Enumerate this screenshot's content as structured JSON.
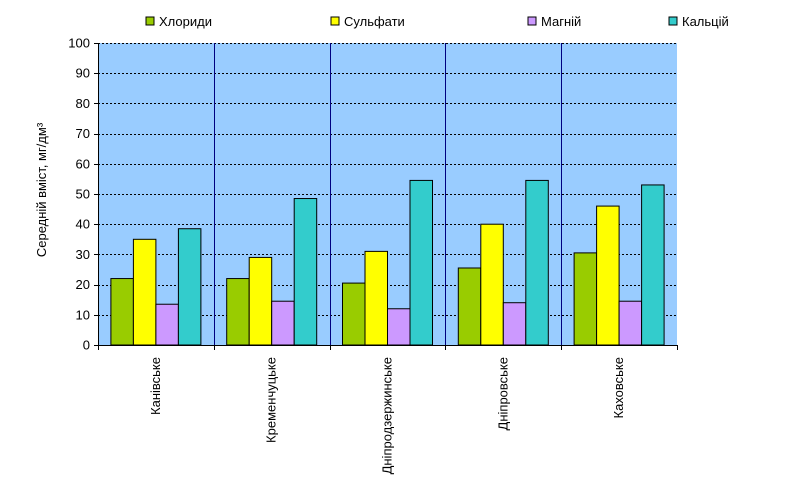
{
  "chart_data": {
    "type": "bar",
    "categories": [
      "Канівське",
      "Кременчуцьке",
      "Дніпродзержинське",
      "Дніпровське",
      "Каховське"
    ],
    "series": [
      {
        "name": "Хлориди",
        "color": "#99cc00",
        "values": [
          22,
          22,
          20.5,
          25.5,
          30.5
        ]
      },
      {
        "name": "Сульфати",
        "color": "#ffff00",
        "values": [
          35,
          29,
          31,
          40,
          46
        ]
      },
      {
        "name": "Магній",
        "color": "#cc99ff",
        "values": [
          13.5,
          14.5,
          12,
          14,
          14.5
        ]
      },
      {
        "name": "Кальцій",
        "color": "#33cccc",
        "values": [
          38.5,
          48.5,
          54.5,
          54.5,
          53
        ]
      }
    ],
    "title": "",
    "xlabel": "",
    "ylabel": "Середній вміст, мг/дм³",
    "ylim": [
      0,
      100
    ],
    "yticks": [
      0,
      10,
      20,
      30,
      40,
      50,
      60,
      70,
      80,
      90,
      100
    ],
    "grid": true,
    "legend_position": "top",
    "plot_background": "#99ccff"
  }
}
